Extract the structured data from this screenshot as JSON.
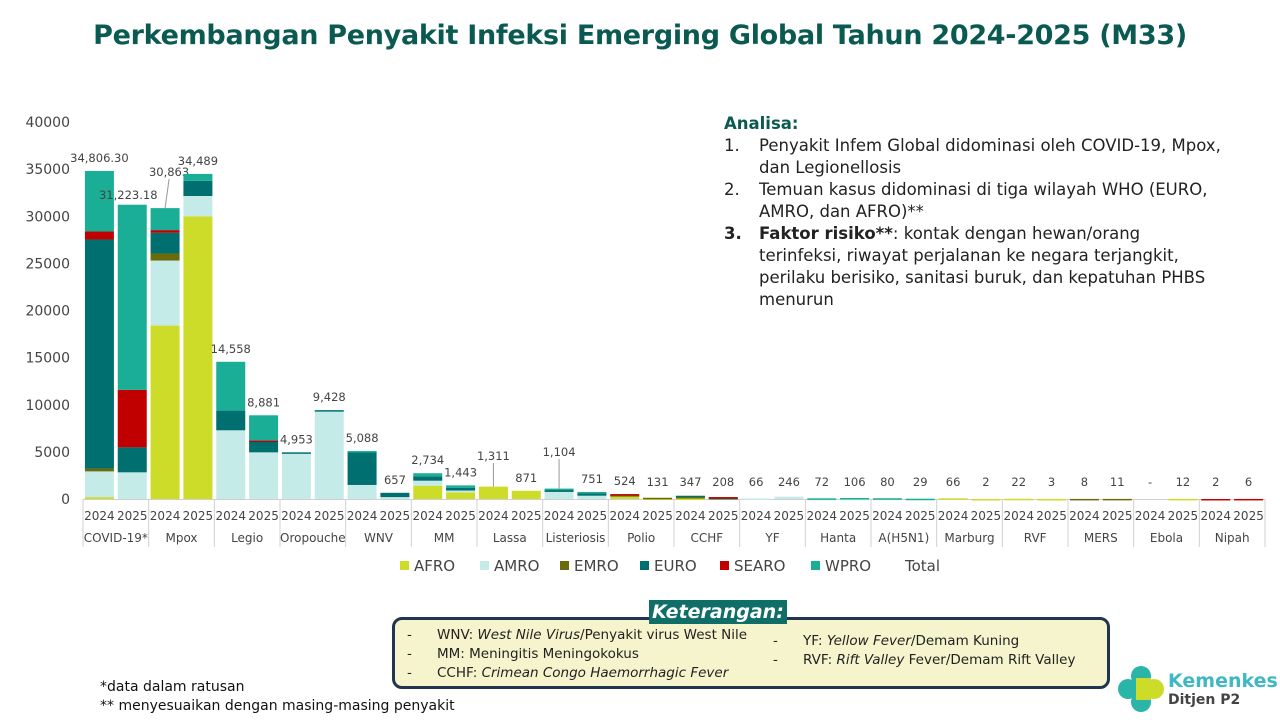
{
  "title": "Perkembangan Penyakit Infeksi Emerging Global Tahun 2024-2025 (M33)",
  "analysis": {
    "heading": "Analisa:",
    "items": [
      {
        "num": "1.",
        "bold": "",
        "text": "Penyakit Infem Global didominasi oleh COVID-19, Mpox, dan Legionellosis"
      },
      {
        "num": "2.",
        "bold": "",
        "text": "Temuan kasus didominasi di tiga wilayah WHO (EURO, AMRO, dan AFRO)**"
      },
      {
        "num": "3.",
        "bold": "Faktor risiko**",
        "text": ": kontak dengan hewan/orang terinfeksi, riwayat perjalanan ke negara terjangkit, perilaku berisiko, sanitasi buruk, dan kepatuhan PHBS menurun"
      }
    ]
  },
  "keterangan": {
    "title": "Keterangan:",
    "left": [
      {
        "dash": "-",
        "abbr": "WNV: ",
        "italic": "West Nile Virus",
        "rest": "/Penyakit virus West Nile"
      },
      {
        "dash": "-",
        "abbr": "MM: ",
        "italic": "",
        "rest": "Meningitis Meningokokus"
      },
      {
        "dash": "-",
        "abbr": "CCHF: ",
        "italic": "Crimean Congo Haemorrhagic Fever",
        "rest": ""
      }
    ],
    "right": [
      {
        "dash": "-",
        "abbr": "YF: ",
        "italic": "Yellow Fever",
        "rest": "/Demam Kuning"
      },
      {
        "dash": "-",
        "abbr": "RVF: ",
        "italic": "Rift Valley",
        "rest": " Fever/Demam Rift Valley"
      }
    ]
  },
  "footnotes": [
    "*data dalam ratusan",
    "** menyesuaikan dengan masing-masing penyakit"
  ],
  "logo": {
    "name": "Kemenkes",
    "sub": "Ditjen P2"
  },
  "chart_data": {
    "type": "bar",
    "stacked": true,
    "ylim": [
      0,
      40000
    ],
    "yticks": [
      0,
      5000,
      10000,
      15000,
      20000,
      25000,
      30000,
      35000,
      40000
    ],
    "groups": [
      "COVID-19*",
      "Mpox",
      "Legio",
      "Oropouche",
      "WNV",
      "MM",
      "Lassa",
      "Listeriosis",
      "Polio",
      "CCHF",
      "YF",
      "Hanta",
      "A(H5N1)",
      "Marburg",
      "RVF",
      "MERS",
      "Ebola",
      "Nipah"
    ],
    "years": [
      "2024",
      "2025"
    ],
    "legend": [
      "AFRO",
      "AMRO",
      "EMRO",
      "EURO",
      "SEARO",
      "WPRO",
      "Total"
    ],
    "legend_position": "bottom",
    "colors": {
      "AFRO": "#cddc29",
      "AMRO": "#c5ebe9",
      "EMRO": "#6b6b0a",
      "EURO": "#006f6f",
      "SEARO": "#c00000",
      "WPRO": "#1aae96"
    },
    "totals_labels": [
      "34,806.30",
      "31,223.18",
      "30,863",
      "34,489",
      "14,558",
      "8,881",
      "4,953",
      "9,428",
      "5,088",
      "657",
      "2,734",
      "1,443",
      "1,311",
      "871",
      "1,104",
      "751",
      "524",
      "131",
      "347",
      "208",
      "66",
      "246",
      "72",
      "106",
      "80",
      "29",
      "66",
      "2",
      "22",
      "3",
      "8",
      "11",
      "-",
      "12",
      "2",
      "6"
    ],
    "series": [
      {
        "name": "AFRO",
        "values": [
          200,
          0,
          18400,
          30000,
          0,
          0,
          0,
          0,
          0,
          0,
          1410,
          700,
          1311,
          871,
          0,
          0,
          250,
          60,
          50,
          0,
          0,
          0,
          0,
          0,
          0,
          0,
          66,
          2,
          22,
          3,
          0,
          0,
          0,
          12,
          0,
          0
        ]
      },
      {
        "name": "AMRO",
        "values": [
          2730,
          2830,
          6900,
          2150,
          7290,
          4950,
          4900,
          9330,
          1490,
          200,
          530,
          200,
          0,
          0,
          750,
          350,
          0,
          0,
          0,
          0,
          66,
          246,
          10,
          20,
          0,
          0,
          0,
          0,
          0,
          0,
          0,
          0,
          0,
          0,
          0,
          0
        ]
      },
      {
        "name": "EMRO",
        "values": [
          300,
          0,
          750,
          0,
          0,
          0,
          0,
          0,
          0,
          0,
          0,
          0,
          0,
          0,
          0,
          0,
          174,
          71,
          250,
          100,
          0,
          0,
          0,
          0,
          0,
          0,
          0,
          0,
          0,
          0,
          8,
          11,
          0,
          0,
          0,
          0
        ]
      },
      {
        "name": "EURO",
        "values": [
          24300,
          2650,
          2200,
          1600,
          2090,
          1100,
          53,
          98,
          3550,
          457,
          460,
          300,
          0,
          0,
          200,
          250,
          0,
          0,
          47,
          50,
          0,
          0,
          0,
          0,
          0,
          0,
          0,
          0,
          0,
          0,
          0,
          0,
          0,
          0,
          0,
          0
        ]
      },
      {
        "name": "SEARO",
        "values": [
          850,
          6100,
          280,
          0,
          0,
          150,
          0,
          0,
          0,
          0,
          0,
          0,
          0,
          0,
          0,
          0,
          100,
          0,
          0,
          58,
          0,
          0,
          0,
          0,
          0,
          0,
          0,
          0,
          0,
          0,
          0,
          0,
          0,
          0,
          2,
          6
        ]
      },
      {
        "name": "WPRO",
        "values": [
          6426,
          19643,
          2333,
          739,
          5178,
          2681,
          0,
          0,
          48,
          0,
          334,
          243,
          0,
          0,
          154,
          151,
          0,
          0,
          0,
          0,
          0,
          0,
          62,
          86,
          80,
          29,
          0,
          0,
          0,
          0,
          0,
          0,
          0,
          0,
          0,
          0
        ]
      }
    ]
  }
}
